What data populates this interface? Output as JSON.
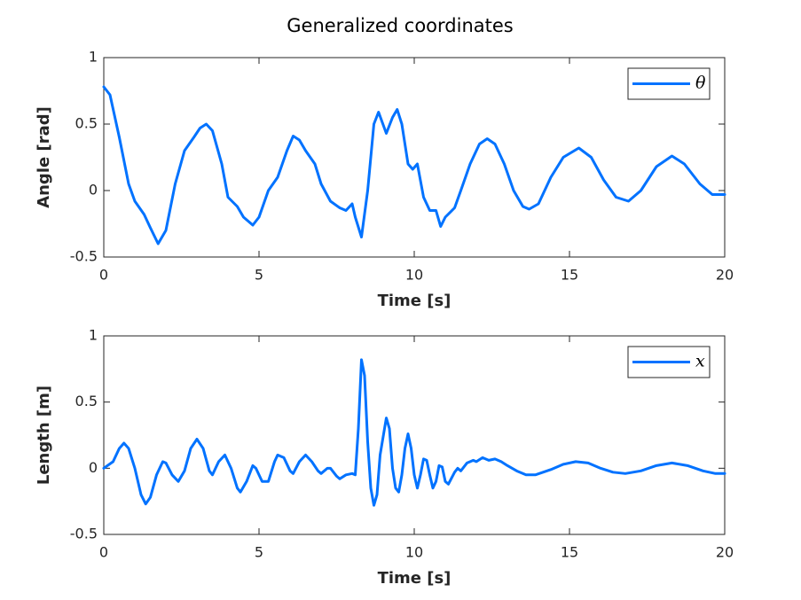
{
  "chart_data": [
    {
      "type": "line",
      "title": "Generalized coordinates",
      "xlabel": "Time [s]",
      "ylabel": "Angle [rad]",
      "x": [
        0,
        0.2,
        0.5,
        0.8,
        1.0,
        1.3,
        1.5,
        1.75,
        2.0,
        2.3,
        2.6,
        2.9,
        3.1,
        3.3,
        3.5,
        3.8,
        4.0,
        4.3,
        4.5,
        4.8,
        5.0,
        5.3,
        5.6,
        5.9,
        6.1,
        6.3,
        6.5,
        6.8,
        7.0,
        7.3,
        7.6,
        7.8,
        8.0,
        8.1,
        8.3,
        8.5,
        8.7,
        8.85,
        9.1,
        9.3,
        9.45,
        9.6,
        9.8,
        9.95,
        10.1,
        10.3,
        10.5,
        10.7,
        10.85,
        11.0,
        11.3,
        11.5,
        11.8,
        12.1,
        12.35,
        12.6,
        12.9,
        13.2,
        13.5,
        13.7,
        14.0,
        14.4,
        14.8,
        15.3,
        15.7,
        16.1,
        16.5,
        16.9,
        17.3,
        17.8,
        18.3,
        18.7,
        19.2,
        19.6,
        20
      ],
      "series": [
        {
          "name": "θ",
          "color": "#0072ff",
          "values": [
            0.78,
            0.72,
            0.4,
            0.05,
            -0.08,
            -0.18,
            -0.28,
            -0.4,
            -0.3,
            0.05,
            0.3,
            0.4,
            0.47,
            0.5,
            0.45,
            0.2,
            -0.05,
            -0.12,
            -0.2,
            -0.26,
            -0.2,
            0.0,
            0.1,
            0.3,
            0.41,
            0.38,
            0.3,
            0.2,
            0.05,
            -0.08,
            -0.13,
            -0.15,
            -0.1,
            -0.2,
            -0.35,
            0.0,
            0.5,
            0.59,
            0.43,
            0.55,
            0.61,
            0.5,
            0.2,
            0.16,
            0.2,
            -0.05,
            -0.15,
            -0.15,
            -0.27,
            -0.2,
            -0.13,
            0.0,
            0.2,
            0.35,
            0.39,
            0.35,
            0.2,
            0.0,
            -0.12,
            -0.14,
            -0.1,
            0.1,
            0.25,
            0.32,
            0.25,
            0.08,
            -0.05,
            -0.08,
            0.0,
            0.18,
            0.26,
            0.2,
            0.05,
            -0.03,
            -0.03
          ]
        }
      ],
      "xlim": [
        0,
        20
      ],
      "ylim": [
        -0.5,
        1
      ],
      "xticks": [
        0,
        5,
        10,
        15,
        20
      ],
      "yticks": [
        -0.5,
        0,
        0.5,
        1
      ],
      "legend": "upper right",
      "grid": false
    },
    {
      "type": "line",
      "xlabel": "Time [s]",
      "ylabel": "Length [m]",
      "x": [
        0,
        0.3,
        0.5,
        0.65,
        0.8,
        1.0,
        1.2,
        1.35,
        1.5,
        1.7,
        1.9,
        2.0,
        2.2,
        2.4,
        2.6,
        2.8,
        3.0,
        3.2,
        3.4,
        3.5,
        3.7,
        3.9,
        4.1,
        4.3,
        4.4,
        4.6,
        4.8,
        4.9,
        5.1,
        5.3,
        5.5,
        5.6,
        5.8,
        6.0,
        6.1,
        6.3,
        6.5,
        6.7,
        6.9,
        7.0,
        7.2,
        7.3,
        7.5,
        7.6,
        7.8,
        8.0,
        8.1,
        8.2,
        8.3,
        8.4,
        8.5,
        8.6,
        8.7,
        8.8,
        8.9,
        9.1,
        9.2,
        9.3,
        9.4,
        9.5,
        9.6,
        9.7,
        9.8,
        9.9,
        10.0,
        10.1,
        10.2,
        10.3,
        10.4,
        10.5,
        10.6,
        10.7,
        10.8,
        10.9,
        11.0,
        11.1,
        11.3,
        11.4,
        11.5,
        11.7,
        11.9,
        12.0,
        12.2,
        12.4,
        12.6,
        12.8,
        13.0,
        13.3,
        13.6,
        13.9,
        14.4,
        14.8,
        15.2,
        15.6,
        16.0,
        16.4,
        16.8,
        17.3,
        17.8,
        18.3,
        18.8,
        19.3,
        19.7,
        20
      ],
      "series": [
        {
          "name": "x",
          "color": "#0072ff",
          "values": [
            0,
            0.05,
            0.15,
            0.19,
            0.15,
            0.0,
            -0.2,
            -0.27,
            -0.22,
            -0.05,
            0.05,
            0.04,
            -0.05,
            -0.1,
            -0.02,
            0.15,
            0.22,
            0.15,
            -0.02,
            -0.05,
            0.05,
            0.1,
            0.0,
            -0.15,
            -0.18,
            -0.1,
            0.02,
            0.0,
            -0.1,
            -0.1,
            0.05,
            0.1,
            0.08,
            -0.02,
            -0.04,
            0.05,
            0.1,
            0.05,
            -0.02,
            -0.04,
            0.0,
            0.0,
            -0.06,
            -0.08,
            -0.05,
            -0.04,
            -0.05,
            0.3,
            0.82,
            0.7,
            0.2,
            -0.15,
            -0.28,
            -0.2,
            0.1,
            0.38,
            0.3,
            0.0,
            -0.15,
            -0.18,
            -0.05,
            0.15,
            0.26,
            0.15,
            -0.05,
            -0.15,
            -0.05,
            0.07,
            0.06,
            -0.05,
            -0.15,
            -0.1,
            0.02,
            0.01,
            -0.1,
            -0.12,
            -0.03,
            0.0,
            -0.02,
            0.04,
            0.06,
            0.05,
            0.08,
            0.06,
            0.07,
            0.05,
            0.02,
            -0.02,
            -0.05,
            -0.05,
            -0.01,
            0.03,
            0.05,
            0.04,
            0.0,
            -0.03,
            -0.04,
            -0.02,
            0.02,
            0.04,
            0.02,
            -0.02,
            -0.04,
            -0.04
          ]
        }
      ],
      "xlim": [
        0,
        20
      ],
      "ylim": [
        -0.5,
        1
      ],
      "xticks": [
        0,
        5,
        10,
        15,
        20
      ],
      "yticks": [
        -0.5,
        0,
        0.5,
        1
      ],
      "legend": "upper right",
      "grid": false
    }
  ]
}
